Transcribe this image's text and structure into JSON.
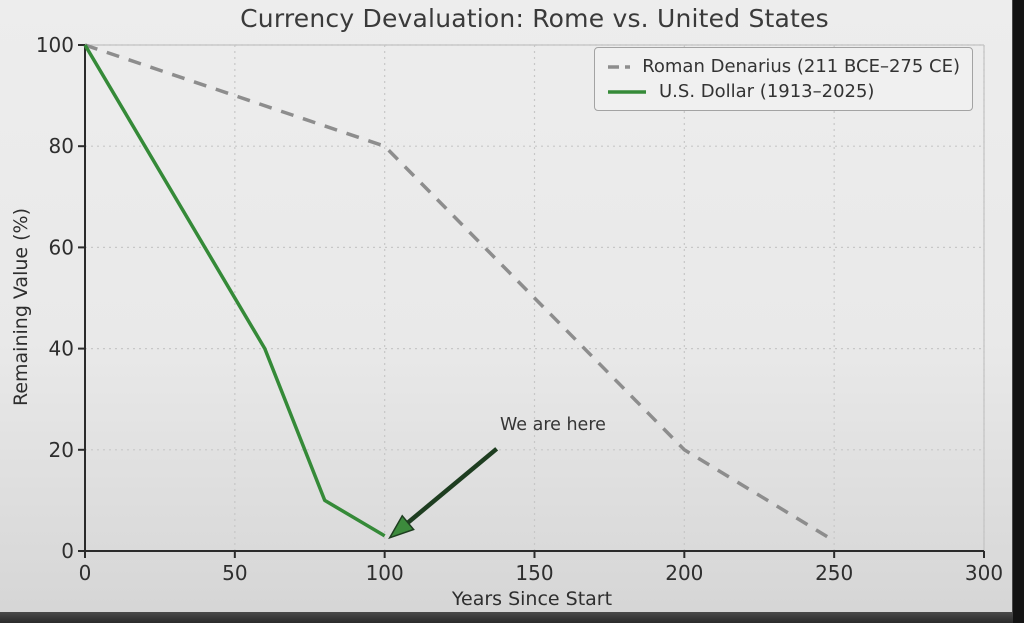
{
  "background": {
    "top": "#ededed",
    "bottom": "#d5d5d5",
    "right_bar": "#131313",
    "bottom_bar_top": "#4a4a4a",
    "bottom_bar_bottom": "#2a2a2a"
  },
  "chart_data": {
    "type": "line",
    "title": "Currency Devaluation: Rome vs. United States",
    "xlabel": "Years Since Start",
    "ylabel": "Remaining Value (%)",
    "xlim": [
      0,
      300
    ],
    "ylim": [
      0,
      100
    ],
    "x_ticks": [
      0,
      50,
      100,
      150,
      200,
      250,
      300
    ],
    "y_ticks": [
      0,
      20,
      40,
      60,
      80,
      100
    ],
    "grid": "dashed",
    "legend_position": "upper right",
    "series": [
      {
        "name": "Roman Denarius (211 BCE–275 CE)",
        "color": "#8d8d8d",
        "style": "dashed",
        "x": [
          0,
          100,
          200,
          250
        ],
        "y": [
          100,
          80,
          20,
          2
        ]
      },
      {
        "name": "U.S. Dollar (1913–2025)",
        "color": "#358a38",
        "style": "solid",
        "x": [
          0,
          60,
          80,
          100
        ],
        "y": [
          100,
          40,
          10,
          3
        ]
      }
    ],
    "annotation": {
      "text": "We are here",
      "arrow_tip_xy": [
        100,
        3
      ],
      "shaft_color": "#1e3d20",
      "head_color": "#3c8a3c"
    }
  }
}
